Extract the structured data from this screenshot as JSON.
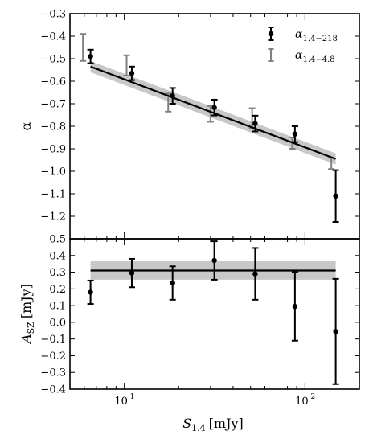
{
  "chart_data": [
    {
      "type": "scatter",
      "panel": "top",
      "x_scale": "log",
      "ylabel": "α",
      "ylim": [
        -1.3,
        -0.3
      ],
      "yticks": [
        "−0.3",
        "−0.4",
        "−0.5",
        "−0.6",
        "−0.7",
        "−0.8",
        "−0.9",
        "−1.0",
        "−1.1",
        "−1.2"
      ],
      "legend_position": "top-right",
      "series": [
        {
          "name": "α1.4−218",
          "legend_main": "α",
          "legend_sub": "1.4−218",
          "style": "black points with error bars",
          "color": "#000000",
          "x": [
            6.5,
            11,
            18.5,
            31.5,
            53,
            88,
            148
          ],
          "y": [
            -0.49,
            -0.565,
            -0.665,
            -0.717,
            -0.788,
            -0.835,
            -1.11
          ],
          "yerr": [
            0.03,
            0.03,
            0.035,
            0.035,
            0.035,
            0.035,
            0.115
          ]
        },
        {
          "name": "α1.4−4.8",
          "legend_main": "α",
          "legend_sub": "1.4−4.8",
          "style": "grey error bars",
          "color": "#808080",
          "x": [
            5.9,
            10.3,
            17.5,
            30.0,
            51.0,
            85.0,
            140.0
          ],
          "y": [
            -0.45,
            -0.53,
            -0.695,
            -0.745,
            -0.765,
            -0.875,
            -0.965
          ],
          "yerr": [
            0.06,
            0.045,
            0.04,
            0.035,
            0.045,
            0.025,
            0.025
          ]
        }
      ],
      "fit_line": {
        "x": [
          6.5,
          148
        ],
        "y": [
          -0.535,
          -0.945
        ],
        "band_halfwidth": 0.025,
        "line_color": "#000000",
        "band_color": "#c8c8c8"
      }
    },
    {
      "type": "scatter",
      "panel": "bottom",
      "x_scale": "log",
      "xlabel": "S1.4 [mJy]",
      "xlabel_main": "S",
      "xlabel_sub": "1.4",
      "xlabel_unit": "[mJy]",
      "ylabel": "ASZ [mJy]",
      "ylabel_main": "A",
      "ylabel_sub": "SZ",
      "ylabel_unit": "[mJy]",
      "ylim": [
        -0.4,
        0.5
      ],
      "yticks": [
        "0.5",
        "0.4",
        "0.3",
        "0.2",
        "0.1",
        "0.0",
        "−0.1",
        "−0.2",
        "−0.3",
        "−0.4"
      ],
      "xlim": [
        5,
        200
      ],
      "xticks": [
        "10",
        "10"
      ],
      "xtick_exponents": [
        "1",
        "2"
      ],
      "series": [
        {
          "name": "ASZ",
          "color": "#000000",
          "x": [
            6.5,
            11,
            18.5,
            31.5,
            53,
            88,
            148
          ],
          "y": [
            0.18,
            0.295,
            0.235,
            0.37,
            0.29,
            0.095,
            -0.055
          ],
          "yerr": [
            0.07,
            0.085,
            0.1,
            0.115,
            0.155,
            0.205,
            0.315
          ]
        }
      ],
      "fit_line": {
        "x": [
          6.5,
          148
        ],
        "y": [
          0.31,
          0.31
        ],
        "band_halfwidth": 0.055,
        "line_color": "#000000",
        "band_color": "#c8c8c8"
      }
    }
  ]
}
